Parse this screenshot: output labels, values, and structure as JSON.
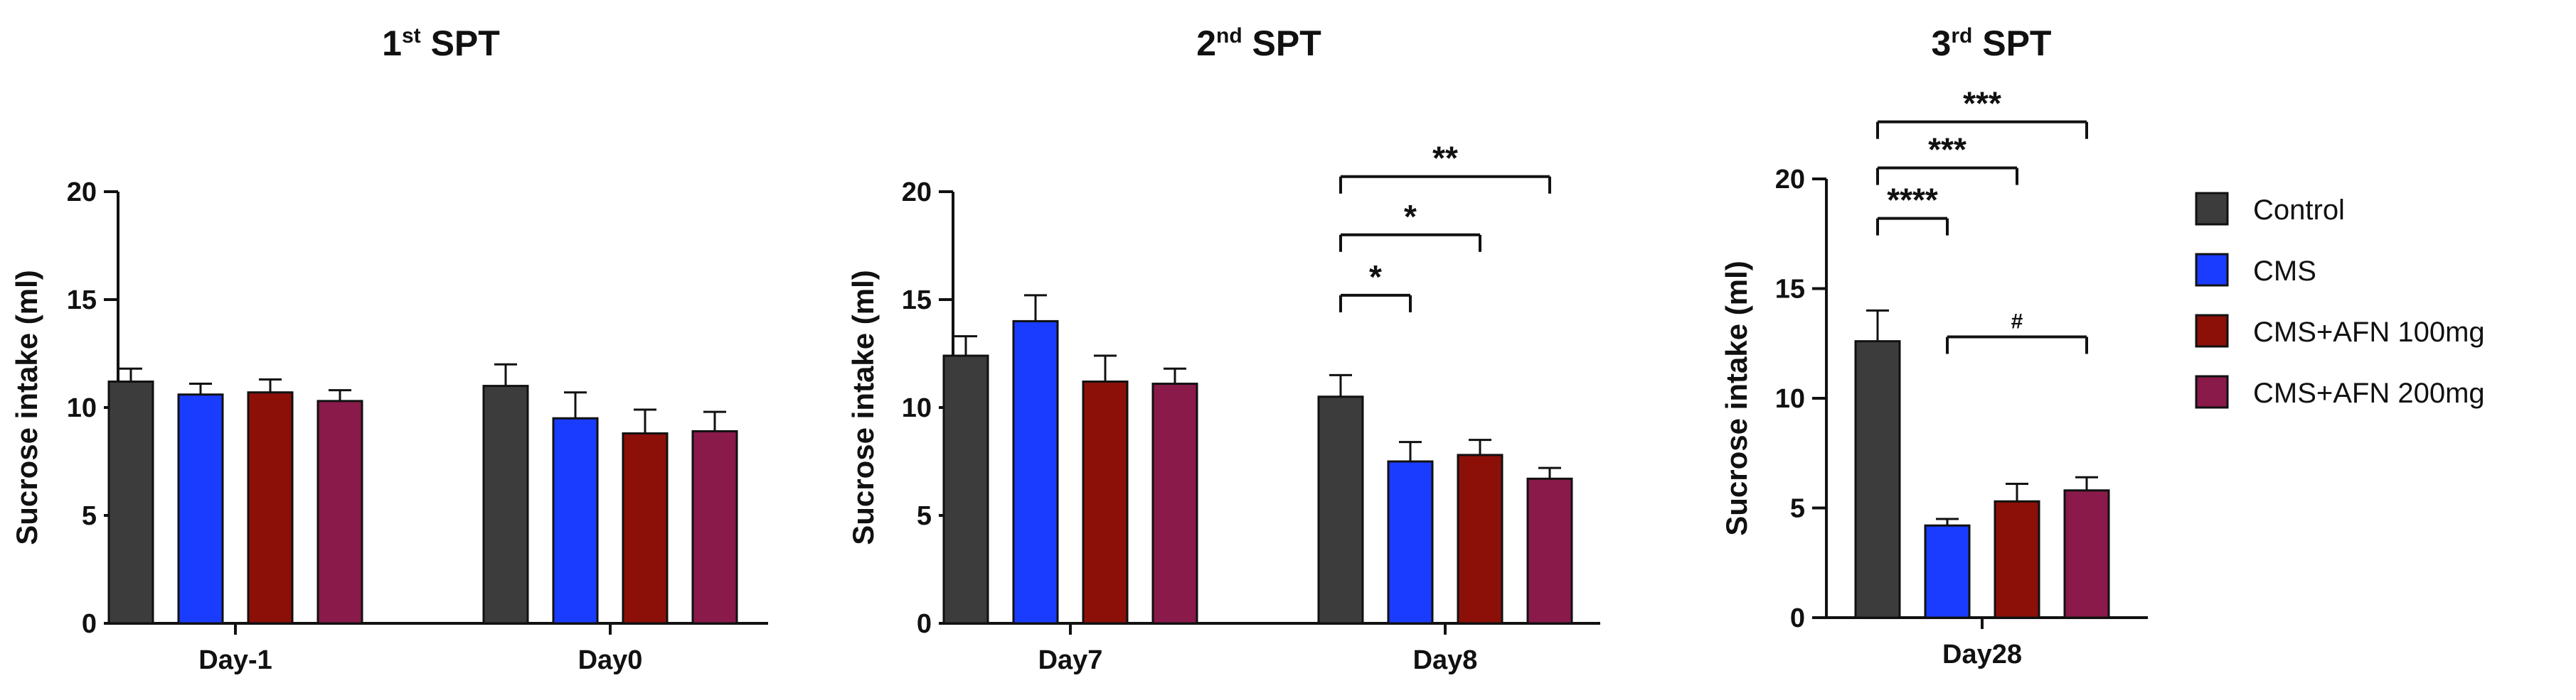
{
  "chart_data": [
    {
      "type": "bar",
      "title": "1st SPT",
      "title_main": "1",
      "title_sup": "st",
      "title_rest": " SPT",
      "ylabel": "Sucrose intake (ml)",
      "ylim": [
        0,
        20
      ],
      "yticks": [
        "0",
        "5",
        "10",
        "15",
        "20"
      ],
      "categories": [
        "Day-1",
        "Day0"
      ],
      "series": [
        {
          "name": "Control",
          "values": [
            11.2,
            11.0
          ],
          "errors": [
            0.6,
            1.0
          ]
        },
        {
          "name": "CMS",
          "values": [
            10.6,
            9.5
          ],
          "errors": [
            0.5,
            1.2
          ]
        },
        {
          "name": "CMS+AFN 100mg",
          "values": [
            10.7,
            8.8
          ],
          "errors": [
            0.6,
            1.1
          ]
        },
        {
          "name": "CMS+AFN 200mg",
          "values": [
            10.3,
            8.9
          ],
          "errors": [
            0.5,
            0.9
          ]
        }
      ],
      "significance": []
    },
    {
      "type": "bar",
      "title": "2nd SPT",
      "title_main": "2",
      "title_sup": "nd",
      "title_rest": " SPT",
      "ylabel": "Sucrose intake (ml)",
      "ylim": [
        0,
        20
      ],
      "yticks": [
        "0",
        "5",
        "10",
        "15",
        "20"
      ],
      "categories": [
        "Day7",
        "Day8"
      ],
      "series": [
        {
          "name": "Control",
          "values": [
            12.4,
            10.5
          ],
          "errors": [
            0.9,
            1.0
          ]
        },
        {
          "name": "CMS",
          "values": [
            14.0,
            7.5
          ],
          "errors": [
            1.2,
            0.9
          ]
        },
        {
          "name": "CMS+AFN 100mg",
          "values": [
            11.2,
            7.8
          ],
          "errors": [
            1.2,
            0.7
          ]
        },
        {
          "name": "CMS+AFN 200mg",
          "values": [
            11.1,
            6.7
          ],
          "errors": [
            0.7,
            0.5
          ]
        }
      ],
      "significance": [
        {
          "label": "*",
          "category": 1,
          "from": 0,
          "to": 1,
          "y": 15.2
        },
        {
          "label": "*",
          "category": 1,
          "from": 0,
          "to": 2,
          "y": 18.0
        },
        {
          "label": "**",
          "category": 1,
          "from": 0,
          "to": 3,
          "y": 20.7
        }
      ]
    },
    {
      "type": "bar",
      "title": "3rd SPT",
      "title_main": "3",
      "title_sup": "rd",
      "title_rest": " SPT",
      "ylabel": "Sucrose intake (ml)",
      "ylim": [
        0,
        20
      ],
      "yticks": [
        "0",
        "5",
        "10",
        "15",
        "20"
      ],
      "categories": [
        "Day28"
      ],
      "series": [
        {
          "name": "Control",
          "values": [
            12.6
          ],
          "errors": [
            1.4
          ]
        },
        {
          "name": "CMS",
          "values": [
            4.2
          ],
          "errors": [
            0.3
          ]
        },
        {
          "name": "CMS+AFN 100mg",
          "values": [
            5.3
          ],
          "errors": [
            0.8
          ]
        },
        {
          "name": "CMS+AFN 200mg",
          "values": [
            5.8
          ],
          "errors": [
            0.6
          ]
        }
      ],
      "significance": [
        {
          "label": "****",
          "category": 0,
          "from": 0,
          "to": 1,
          "y": 18.2
        },
        {
          "label": "***",
          "category": 0,
          "from": 0,
          "to": 2,
          "y": 20.5
        },
        {
          "label": "***",
          "category": 0,
          "from": 0,
          "to": 3,
          "y": 22.6
        },
        {
          "label": "#",
          "category": 0,
          "from": 1,
          "to": 3,
          "y": 12.8,
          "small": true
        }
      ]
    }
  ],
  "legend": {
    "items": [
      {
        "name": "Control",
        "color": "#3c3c3c"
      },
      {
        "name": "CMS",
        "color": "#1a3cff"
      },
      {
        "name": "CMS+AFN 100mg",
        "color": "#8c1008"
      },
      {
        "name": "CMS+AFN 200mg",
        "color": "#8a1a4a"
      }
    ]
  }
}
